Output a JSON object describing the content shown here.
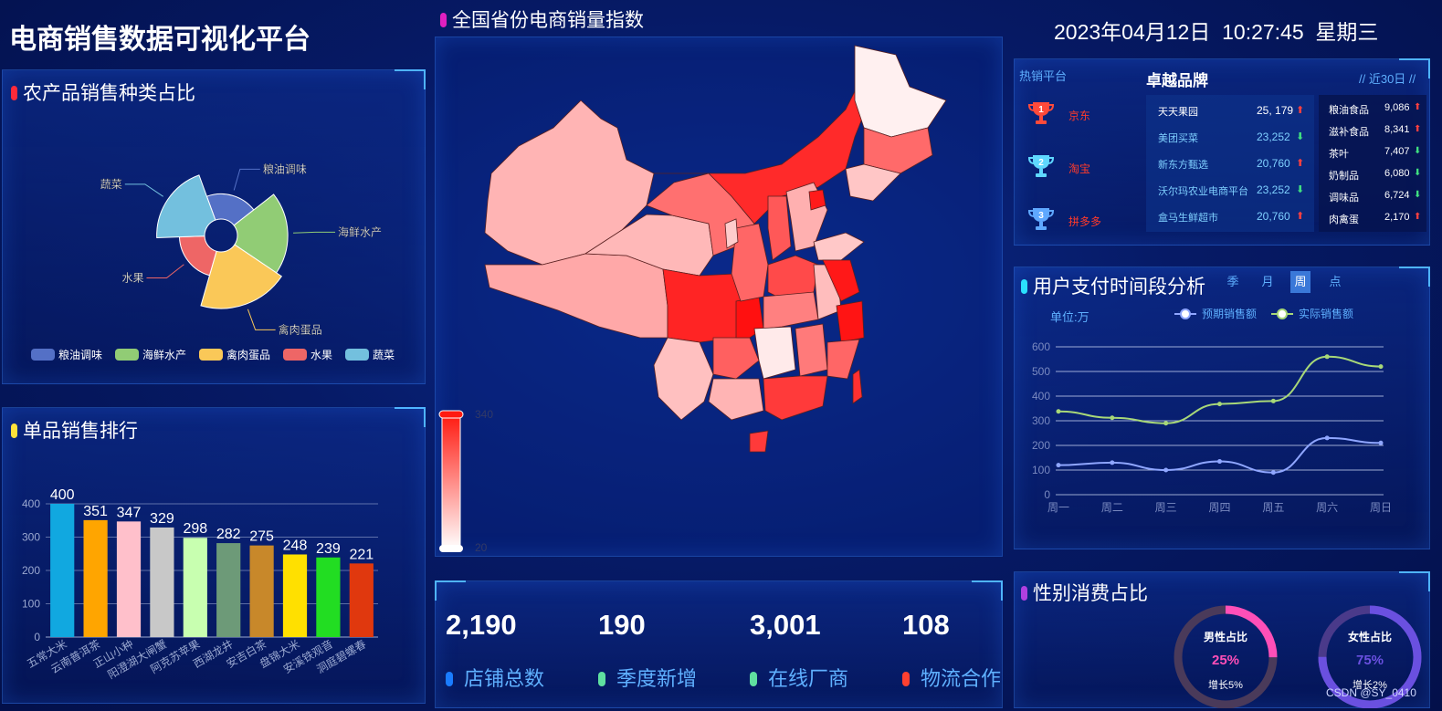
{
  "header": {
    "title": "电商销售数据可视化平台",
    "datetime": "2023年04月12日  10:27:45  星期三",
    "watermark": "CSDN @SY_0410"
  },
  "panels": {
    "category_share": {
      "title": "农产品销售种类占比",
      "bar_color": "#ff2a3a"
    },
    "product_rank": {
      "title": "单品销售排行",
      "bar_color": "#ffe23a"
    },
    "map": {
      "title": "全国省份电商销量指数",
      "bar_color": "#e020c0",
      "scale_max": "340",
      "scale_min": "20"
    },
    "hot_platform": {
      "label": "热销平台",
      "brand_title": "卓越品牌",
      "range": "// 近30日 //",
      "platforms": [
        {
          "rank": "1",
          "name": "京东",
          "color": "#ff4a3a"
        },
        {
          "rank": "2",
          "name": "淘宝",
          "color": "#5fd8ff"
        },
        {
          "rank": "3",
          "name": "拼多多",
          "color": "#5fa8ff"
        }
      ],
      "brands": [
        {
          "name": "天天果园",
          "value": "25, 179",
          "trend": "up"
        },
        {
          "name": "美团买菜",
          "value": "23,252",
          "trend": "down"
        },
        {
          "name": "新东方甄选",
          "value": "20,760",
          "trend": "up"
        },
        {
          "name": "沃尔玛农业电商平台",
          "value": "23,252",
          "trend": "down"
        },
        {
          "name": "盒马生鲜超市",
          "value": "20,760",
          "trend": "up"
        }
      ],
      "categories": [
        {
          "name": "粮油食品",
          "value": "9,086",
          "trend": "up"
        },
        {
          "name": "滋补食品",
          "value": "8,341",
          "trend": "up"
        },
        {
          "name": "茶叶",
          "value": "7,407",
          "trend": "down"
        },
        {
          "name": "奶制品",
          "value": "6,080",
          "trend": "down"
        },
        {
          "name": "调味品",
          "value": "6,724",
          "trend": "down"
        },
        {
          "name": "肉禽蛋",
          "value": "2,170",
          "trend": "up"
        }
      ]
    },
    "payment_time": {
      "title": "用户支付时间段分析",
      "bar_color": "#2ae0ff",
      "tabs": [
        "季",
        "月",
        "周",
        "点"
      ],
      "active_tab": "周",
      "unit": "单位:万"
    },
    "gender": {
      "title": "性别消费占比",
      "bar_color": "#b040e0",
      "male": {
        "label": "男性占比",
        "percent": "25%",
        "growth": "增长5%",
        "value": 0.25
      },
      "female": {
        "label": "女性占比",
        "percent": "75%",
        "growth": "增长2%",
        "value": 0.75
      }
    }
  },
  "stats": [
    {
      "value": "2,190",
      "label": "店铺总数",
      "color": "#1a7cff"
    },
    {
      "value": "190",
      "label": "季度新增",
      "color": "#5fe0a0"
    },
    {
      "value": "3,001",
      "label": "在线厂商",
      "color": "#5fe0a0"
    },
    {
      "value": "108",
      "label": "物流合作",
      "color": "#ff4030"
    }
  ],
  "chart_data": [
    {
      "type": "pie",
      "rose": true,
      "categories": [
        "粮油调味",
        "海鲜水产",
        "禽肉蛋品",
        "水果",
        "蔬菜"
      ],
      "values": [
        20,
        40,
        45,
        20,
        38
      ],
      "colors": [
        "#5470c6",
        "#91cc75",
        "#fac858",
        "#ee6666",
        "#73c0de"
      ],
      "legend": "bottom"
    },
    {
      "type": "bar",
      "categories": [
        "五常大米",
        "云南普洱茶",
        "正山小种",
        "阳澄湖大闸蟹",
        "阿克苏苹果",
        "西湖龙井",
        "安吉白茶",
        "盘锦大米",
        "安溪铁观音",
        "洞庭碧螺春"
      ],
      "values": [
        400,
        351,
        347,
        329,
        298,
        282,
        275,
        248,
        239,
        221
      ],
      "colors": [
        "#11a8e0",
        "#ffa500",
        "#ffc0cb",
        "#c8c8c8",
        "#c8ffb0",
        "#6d9a78",
        "#c8882a",
        "#ffe000",
        "#22dd22",
        "#e0380e"
      ],
      "ylim": [
        0,
        400
      ],
      "yticks": [
        0,
        100,
        200,
        300,
        400
      ]
    },
    {
      "type": "line",
      "x": [
        "周一",
        "周二",
        "周三",
        "周四",
        "周五",
        "周六",
        "周日"
      ],
      "series": [
        {
          "name": "预期销售额",
          "values": [
            120,
            130,
            100,
            135,
            90,
            230,
            210
          ],
          "color": "#8fa6ff"
        },
        {
          "name": "实际销售额",
          "values": [
            338,
            312,
            290,
            368,
            380,
            560,
            520
          ],
          "color": "#a8d878"
        }
      ],
      "ylim": [
        0,
        600
      ],
      "yticks": [
        0,
        100,
        200,
        300,
        400,
        500,
        600
      ],
      "legend": "top-right"
    }
  ]
}
